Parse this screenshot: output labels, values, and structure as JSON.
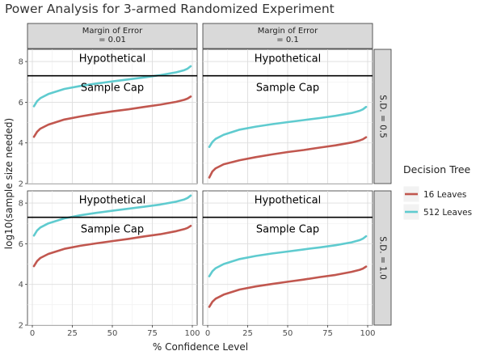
{
  "chart_data": {
    "type": "line",
    "title": "Power Analysis for 3-armed Randomized Experiment",
    "xlabel": "% Confidence Level",
    "ylabel": "log10(sample size needed)",
    "xlim": [
      0,
      100
    ],
    "ylim": [
      2,
      8.6
    ],
    "x_ticks": [
      "0",
      "25",
      "50",
      "75",
      "100"
    ],
    "y_ticks": [
      "2",
      "4",
      "6",
      "8"
    ],
    "grid": true,
    "legend": {
      "title": "Decision Tree",
      "position": "right",
      "entries": [
        {
          "name": "16 Leaves",
          "color": "#c1574f"
        },
        {
          "name": "512 Leaves",
          "color": "#5fcbcf"
        }
      ]
    },
    "col_strips": [
      "Margin of Error\n= 0.01",
      "Margin of Error\n= 0.1"
    ],
    "row_strips": [
      "S.D. = 0.5",
      "S.D. = 1.0"
    ],
    "reference_line": {
      "y": 7.3,
      "label_above": "Hypothetical",
      "label_below": "Sample Cap"
    },
    "x": [
      1,
      3,
      5,
      10,
      20,
      30,
      40,
      50,
      60,
      70,
      80,
      90,
      95,
      97,
      99
    ],
    "panels": [
      {
        "col": 0,
        "row": 0,
        "series": [
          {
            "name": "16 Leaves",
            "values": [
              4.3,
              4.55,
              4.7,
              4.9,
              5.15,
              5.3,
              5.43,
              5.55,
              5.65,
              5.77,
              5.88,
              6.02,
              6.12,
              6.18,
              6.28
            ]
          },
          {
            "name": "512 Leaves",
            "values": [
              5.8,
              6.05,
              6.2,
              6.4,
              6.65,
              6.8,
              6.92,
              7.02,
              7.12,
              7.22,
              7.33,
              7.47,
              7.58,
              7.65,
              7.77
            ]
          }
        ]
      },
      {
        "col": 1,
        "row": 0,
        "series": [
          {
            "name": "16 Leaves",
            "values": [
              2.3,
              2.6,
              2.75,
              2.95,
              3.15,
              3.3,
              3.43,
              3.55,
              3.65,
              3.77,
              3.88,
              4.02,
              4.12,
              4.18,
              4.28
            ]
          },
          {
            "name": "512 Leaves",
            "values": [
              3.8,
              4.05,
              4.2,
              4.4,
              4.65,
              4.8,
              4.92,
              5.02,
              5.12,
              5.22,
              5.33,
              5.47,
              5.58,
              5.65,
              5.77
            ]
          }
        ]
      },
      {
        "col": 0,
        "row": 1,
        "series": [
          {
            "name": "16 Leaves",
            "values": [
              4.9,
              5.15,
              5.3,
              5.5,
              5.75,
              5.9,
              6.02,
              6.13,
              6.24,
              6.36,
              6.47,
              6.62,
              6.72,
              6.78,
              6.88
            ]
          },
          {
            "name": "512 Leaves",
            "values": [
              6.4,
              6.65,
              6.8,
              7.0,
              7.25,
              7.4,
              7.52,
              7.62,
              7.72,
              7.82,
              7.93,
              8.07,
              8.18,
              8.25,
              8.37
            ]
          }
        ]
      },
      {
        "col": 1,
        "row": 1,
        "series": [
          {
            "name": "16 Leaves",
            "values": [
              2.9,
              3.15,
              3.3,
              3.5,
              3.75,
              3.9,
              4.02,
              4.13,
              4.24,
              4.36,
              4.47,
              4.62,
              4.72,
              4.78,
              4.88
            ]
          },
          {
            "name": "512 Leaves",
            "values": [
              4.4,
              4.65,
              4.8,
              5.0,
              5.25,
              5.4,
              5.52,
              5.62,
              5.72,
              5.82,
              5.93,
              6.07,
              6.18,
              6.25,
              6.37
            ]
          }
        ]
      }
    ]
  }
}
